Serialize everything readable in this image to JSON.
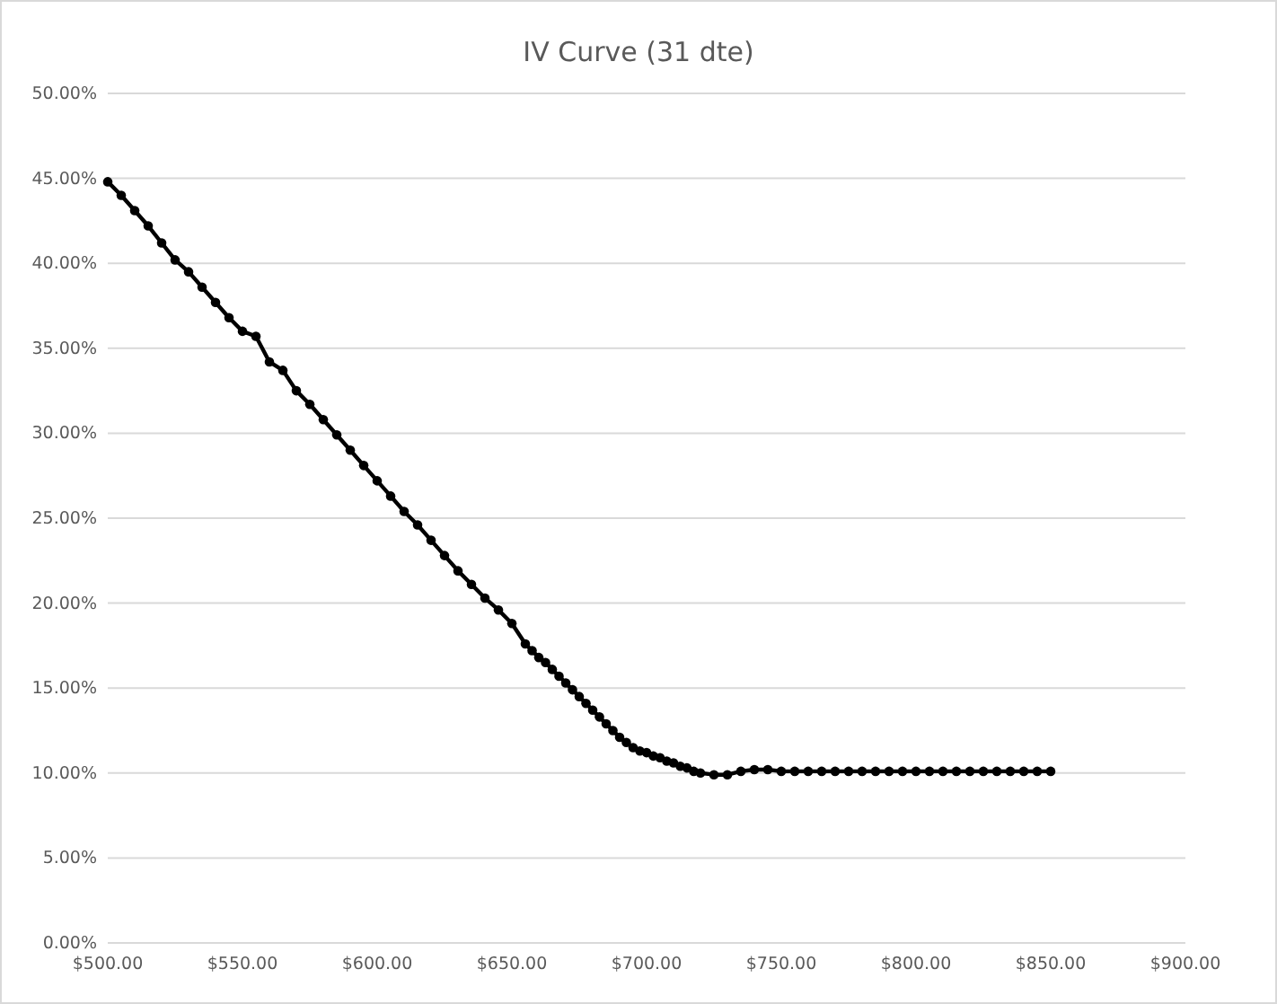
{
  "chart_data": {
    "type": "line",
    "title": "IV Curve  (31 dte)",
    "xlim": [
      500,
      900
    ],
    "xticks": [
      {
        "value": 500,
        "label": "$500.00"
      },
      {
        "value": 550,
        "label": "$550.00"
      },
      {
        "value": 600,
        "label": "$600.00"
      },
      {
        "value": 650,
        "label": "$650.00"
      },
      {
        "value": 700,
        "label": "$700.00"
      },
      {
        "value": 750,
        "label": "$750.00"
      },
      {
        "value": 800,
        "label": "$800.00"
      },
      {
        "value": 850,
        "label": "$850.00"
      },
      {
        "value": 900,
        "label": "$900.00"
      }
    ],
    "ylim": [
      0,
      50
    ],
    "yticks": [
      {
        "value": 0,
        "label": "0.00%"
      },
      {
        "value": 5,
        "label": "5.00%"
      },
      {
        "value": 10,
        "label": "10.00%"
      },
      {
        "value": 15,
        "label": "15.00%"
      },
      {
        "value": 20,
        "label": "20.00%"
      },
      {
        "value": 25,
        "label": "25.00%"
      },
      {
        "value": 30,
        "label": "30.00%"
      },
      {
        "value": 35,
        "label": "35.00%"
      },
      {
        "value": 40,
        "label": "40.00%"
      },
      {
        "value": 45,
        "label": "45.00%"
      },
      {
        "value": 50,
        "label": "50.00%"
      }
    ],
    "grid": "y",
    "marker": "circle",
    "line_style": "solid",
    "series": [
      {
        "color": "#000000",
        "x": [
          500,
          505,
          510,
          515,
          520,
          525,
          530,
          535,
          540,
          545,
          550,
          555,
          560,
          565,
          570,
          575,
          580,
          585,
          590,
          595,
          600,
          605,
          610,
          615,
          620,
          625,
          630,
          635,
          640,
          645,
          650,
          655,
          657.5,
          660,
          662.5,
          665,
          667.5,
          670,
          672.5,
          675,
          677.5,
          680,
          682.5,
          685,
          687.5,
          690,
          692.5,
          695,
          697.5,
          700,
          702.5,
          705,
          707.5,
          710,
          712.5,
          715,
          717.5,
          720,
          725,
          730,
          735,
          740,
          745,
          750,
          755,
          760,
          765,
          770,
          775,
          780,
          785,
          790,
          795,
          800,
          805,
          810,
          815,
          820,
          825,
          830,
          835,
          840,
          845,
          850
        ],
        "values": [
          44.8,
          44.0,
          43.1,
          42.2,
          41.2,
          40.2,
          39.5,
          38.6,
          37.7,
          36.8,
          36.0,
          35.7,
          34.2,
          33.7,
          32.5,
          31.7,
          30.8,
          29.9,
          29.0,
          28.1,
          27.2,
          26.3,
          25.4,
          24.6,
          23.7,
          22.8,
          21.9,
          21.1,
          20.3,
          19.6,
          18.8,
          17.6,
          17.2,
          16.8,
          16.5,
          16.1,
          15.7,
          15.3,
          14.9,
          14.5,
          14.1,
          13.7,
          13.3,
          12.9,
          12.5,
          12.1,
          11.8,
          11.5,
          11.3,
          11.2,
          11.0,
          10.9,
          10.7,
          10.6,
          10.4,
          10.3,
          10.1,
          10.0,
          9.9,
          9.9,
          10.1,
          10.2,
          10.2,
          10.1,
          10.1,
          10.1,
          10.1,
          10.1,
          10.1,
          10.1,
          10.1,
          10.1,
          10.1,
          10.1,
          10.1,
          10.1,
          10.1,
          10.1,
          10.1,
          10.1,
          10.1,
          10.1,
          10.1,
          10.1
        ]
      }
    ]
  }
}
